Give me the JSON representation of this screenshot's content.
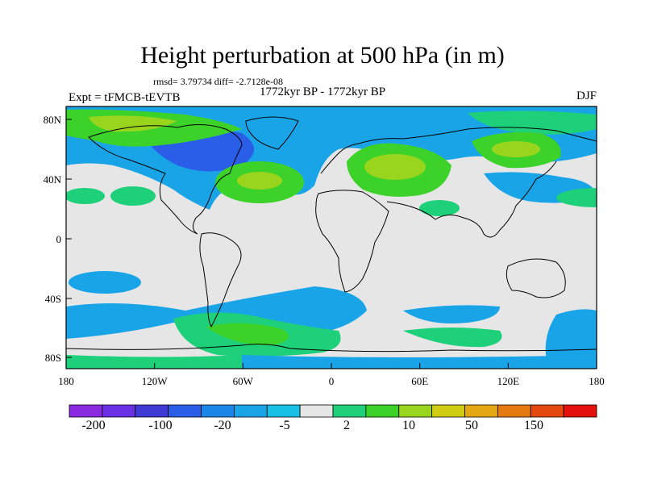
{
  "header": {
    "title": "Height perturbation at 500 hPa (in m)",
    "stats": "rmsd= 3.79734 diff= -2.7128e-08",
    "expt": "Expt = tFMCB-tEVTB",
    "period": "1772kyr BP - 1772kyr BP",
    "season": "DJF"
  },
  "map": {
    "lat_ticks": [
      "80N",
      "40N",
      "0",
      "40S",
      "80S"
    ],
    "lon_ticks": [
      "180",
      "120W",
      "60W",
      "0",
      "60E",
      "120E",
      "180"
    ]
  },
  "colorbar": {
    "labels": [
      "-200",
      "-100",
      "-20",
      "-5",
      "2",
      "10",
      "50",
      "150"
    ],
    "colors": [
      "#8a2be2",
      "#6a30e6",
      "#3f39d6",
      "#2a5ee8",
      "#1c86e8",
      "#1aa4e8",
      "#18c0e6",
      "#e6e6e6",
      "#1ed07a",
      "#3cd22a",
      "#9ad51e",
      "#d0cc14",
      "#e6a812",
      "#e67a10",
      "#e5480e",
      "#e3120c"
    ]
  }
}
